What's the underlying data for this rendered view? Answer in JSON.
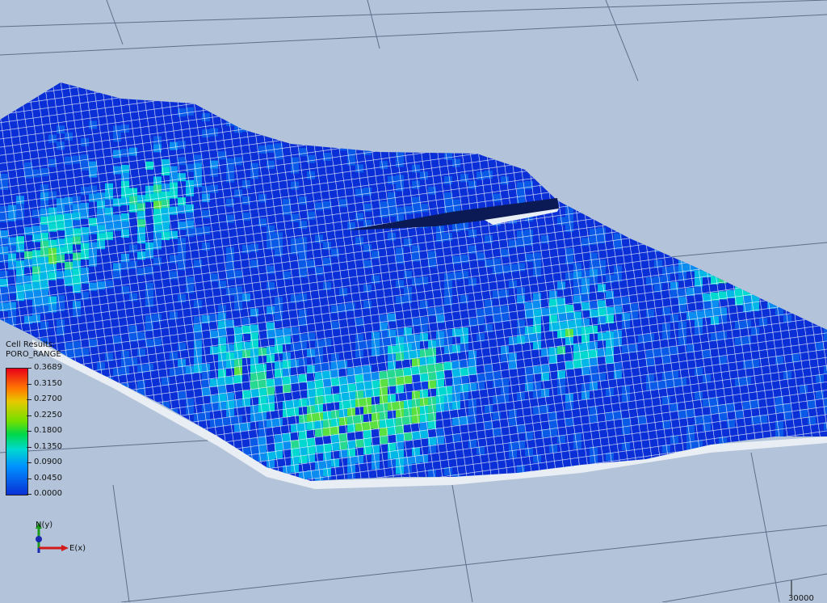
{
  "legend": {
    "title": "Cell Results:",
    "property": "PORO_RANGE",
    "labels": [
      "0.3689",
      "0.3150",
      "0.2700",
      "0.2250",
      "0.1800",
      "0.1350",
      "0.0900",
      "0.0450",
      "0.0000"
    ]
  },
  "axes": {
    "north_label": "N(y)",
    "east_label": "E(x)"
  },
  "scale": {
    "label": "30000"
  },
  "colors": {
    "background": "#b3c4da",
    "grid_lines": "#5d6f8a",
    "dominant_cell": "#0a2fd6",
    "cell_edges": "#ffffff",
    "north_axis": "#1a9a1a",
    "east_axis": "#d21a1a"
  }
}
